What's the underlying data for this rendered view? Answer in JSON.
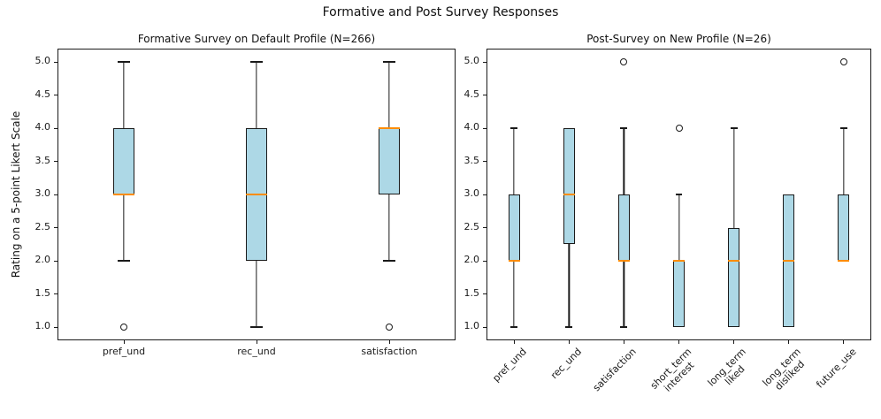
{
  "figure": {
    "title": "Formative and Post Survey Responses",
    "ylabel": "Rating on a 5-point Likert Scale",
    "background_color": "#ffffff",
    "axis_color": "#1a1a1a"
  },
  "chart_data": [
    {
      "type": "boxplot",
      "title": "Formative Survey on Default Profile (N=266)",
      "categories": [
        "pref_und",
        "rec_und",
        "satisfaction"
      ],
      "ylim": [
        0.8,
        5.2
      ],
      "yticks": [
        1.0,
        1.5,
        2.0,
        2.5,
        3.0,
        3.5,
        4.0,
        4.5,
        5.0
      ],
      "ytick_labels": [
        "1.0",
        "1.5",
        "2.0",
        "2.5",
        "3.0",
        "3.5",
        "4.0",
        "4.5",
        "5.0"
      ],
      "grid": false,
      "xlabel_rotation": 0,
      "box_fill": "#add8e6",
      "median_color": "#ff8c00",
      "series": [
        {
          "label": "pref_und",
          "whisker_low": 2.0,
          "q1": 3.0,
          "median": 3.0,
          "q3": 4.0,
          "whisker_high": 5.0,
          "outliers": [
            1.0
          ]
        },
        {
          "label": "rec_und",
          "whisker_low": 1.0,
          "q1": 2.0,
          "median": 3.0,
          "q3": 4.0,
          "whisker_high": 5.0,
          "outliers": []
        },
        {
          "label": "satisfaction",
          "whisker_low": 2.0,
          "q1": 3.0,
          "median": 4.0,
          "q3": 4.0,
          "whisker_high": 5.0,
          "outliers": [
            1.0
          ]
        }
      ]
    },
    {
      "type": "boxplot",
      "title": "Post-Survey on New Profile (N=26)",
      "categories": [
        "pref_und",
        "rec_und",
        "satisfaction",
        "short_term\ninterest",
        "long_term\nliked",
        "long_term\ndisliked",
        "future_use"
      ],
      "ylim": [
        0.8,
        5.2
      ],
      "yticks": [
        1.0,
        1.5,
        2.0,
        2.5,
        3.0,
        3.5,
        4.0,
        4.5,
        5.0
      ],
      "ytick_labels": [
        "1.0",
        "1.5",
        "2.0",
        "2.5",
        "3.0",
        "3.5",
        "4.0",
        "4.5",
        "5.0"
      ],
      "grid": false,
      "xlabel_rotation": 45,
      "box_fill": "#add8e6",
      "median_color": "#ff8c00",
      "series": [
        {
          "label": "pref_und",
          "whisker_low": 1.0,
          "q1": 2.0,
          "median": 2.0,
          "q3": 3.0,
          "whisker_high": 4.0,
          "outliers": []
        },
        {
          "label": "rec_und",
          "whisker_low": 1.0,
          "q1": 2.25,
          "median": 3.0,
          "q3": 4.0,
          "whisker_high": 4.0,
          "outliers": []
        },
        {
          "label": "satisfaction",
          "whisker_low": 1.0,
          "q1": 2.0,
          "median": 2.0,
          "q3": 3.0,
          "whisker_high": 4.0,
          "outliers": [
            5.0
          ]
        },
        {
          "label": "short_term\ninterest",
          "whisker_low": 1.0,
          "q1": 1.0,
          "median": 2.0,
          "q3": 2.0,
          "whisker_high": 3.0,
          "outliers": [
            4.0
          ]
        },
        {
          "label": "long_term\nliked",
          "whisker_low": 1.0,
          "q1": 1.0,
          "median": 2.0,
          "q3": 2.5,
          "whisker_high": 4.0,
          "outliers": []
        },
        {
          "label": "long_term\ndisliked",
          "whisker_low": 1.0,
          "q1": 1.0,
          "median": 2.0,
          "q3": 3.0,
          "whisker_high": 3.0,
          "outliers": []
        },
        {
          "label": "future_use",
          "whisker_low": 2.0,
          "q1": 2.0,
          "median": 2.0,
          "q3": 3.0,
          "whisker_high": 4.0,
          "outliers": [
            5.0
          ]
        }
      ]
    }
  ]
}
